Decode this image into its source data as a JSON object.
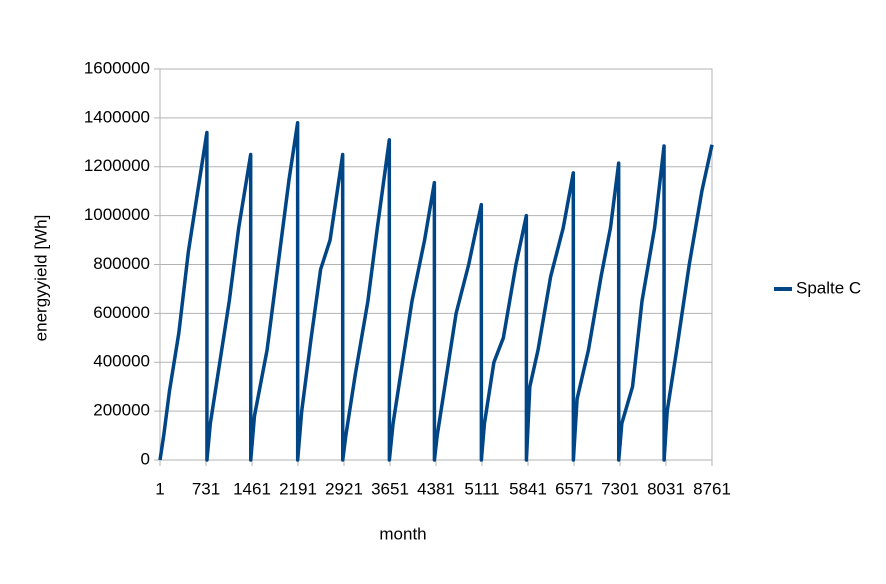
{
  "chart_data": {
    "type": "line",
    "x_label": "month",
    "y_label": "energyyield [Wh]",
    "x": [
      1,
      60,
      150,
      300,
      450,
      600,
      745,
      746,
      800,
      950,
      1100,
      1250,
      1440,
      1441,
      1500,
      1700,
      1900,
      2050,
      2185,
      2186,
      2250,
      2400,
      2550,
      2700,
      2900,
      2901,
      2950,
      3100,
      3300,
      3450,
      3640,
      3641,
      3700,
      3850,
      4000,
      4200,
      4355,
      4356,
      4400,
      4550,
      4700,
      4900,
      5100,
      5101,
      5150,
      5300,
      5450,
      5650,
      5815,
      5816,
      5870,
      6000,
      6200,
      6400,
      6560,
      6561,
      6620,
      6800,
      7000,
      7150,
      7280,
      7281,
      7330,
      7500,
      7650,
      7850,
      8000,
      8001,
      8050,
      8200,
      8400,
      8600,
      8761
    ],
    "series": [
      {
        "name": "Spalte C",
        "color": "#004586",
        "values": [
          0,
          100000,
          280000,
          520000,
          850000,
          1100000,
          1340000,
          0,
          150000,
          400000,
          650000,
          950000,
          1250000,
          0,
          180000,
          450000,
          850000,
          1150000,
          1380000,
          0,
          200000,
          500000,
          780000,
          900000,
          1250000,
          0,
          100000,
          350000,
          650000,
          950000,
          1310000,
          0,
          150000,
          400000,
          650000,
          900000,
          1135000,
          0,
          100000,
          350000,
          600000,
          800000,
          1045000,
          0,
          150000,
          400000,
          500000,
          800000,
          1000000,
          0,
          300000,
          450000,
          750000,
          950000,
          1175000,
          0,
          250000,
          450000,
          750000,
          950000,
          1215000,
          0,
          150000,
          300000,
          650000,
          950000,
          1285000,
          0,
          200000,
          450000,
          800000,
          1100000,
          1290000
        ]
      }
    ],
    "xlim": [
      1,
      8761
    ],
    "xticks": [
      1,
      731,
      1461,
      2191,
      2921,
      3651,
      4381,
      5111,
      5841,
      6571,
      7301,
      8031,
      8761
    ],
    "ylim": [
      0,
      1600000
    ],
    "yticks": [
      0,
      200000,
      400000,
      600000,
      800000,
      1000000,
      1200000,
      1400000,
      1600000
    ],
    "grid": true,
    "legend": "right"
  }
}
